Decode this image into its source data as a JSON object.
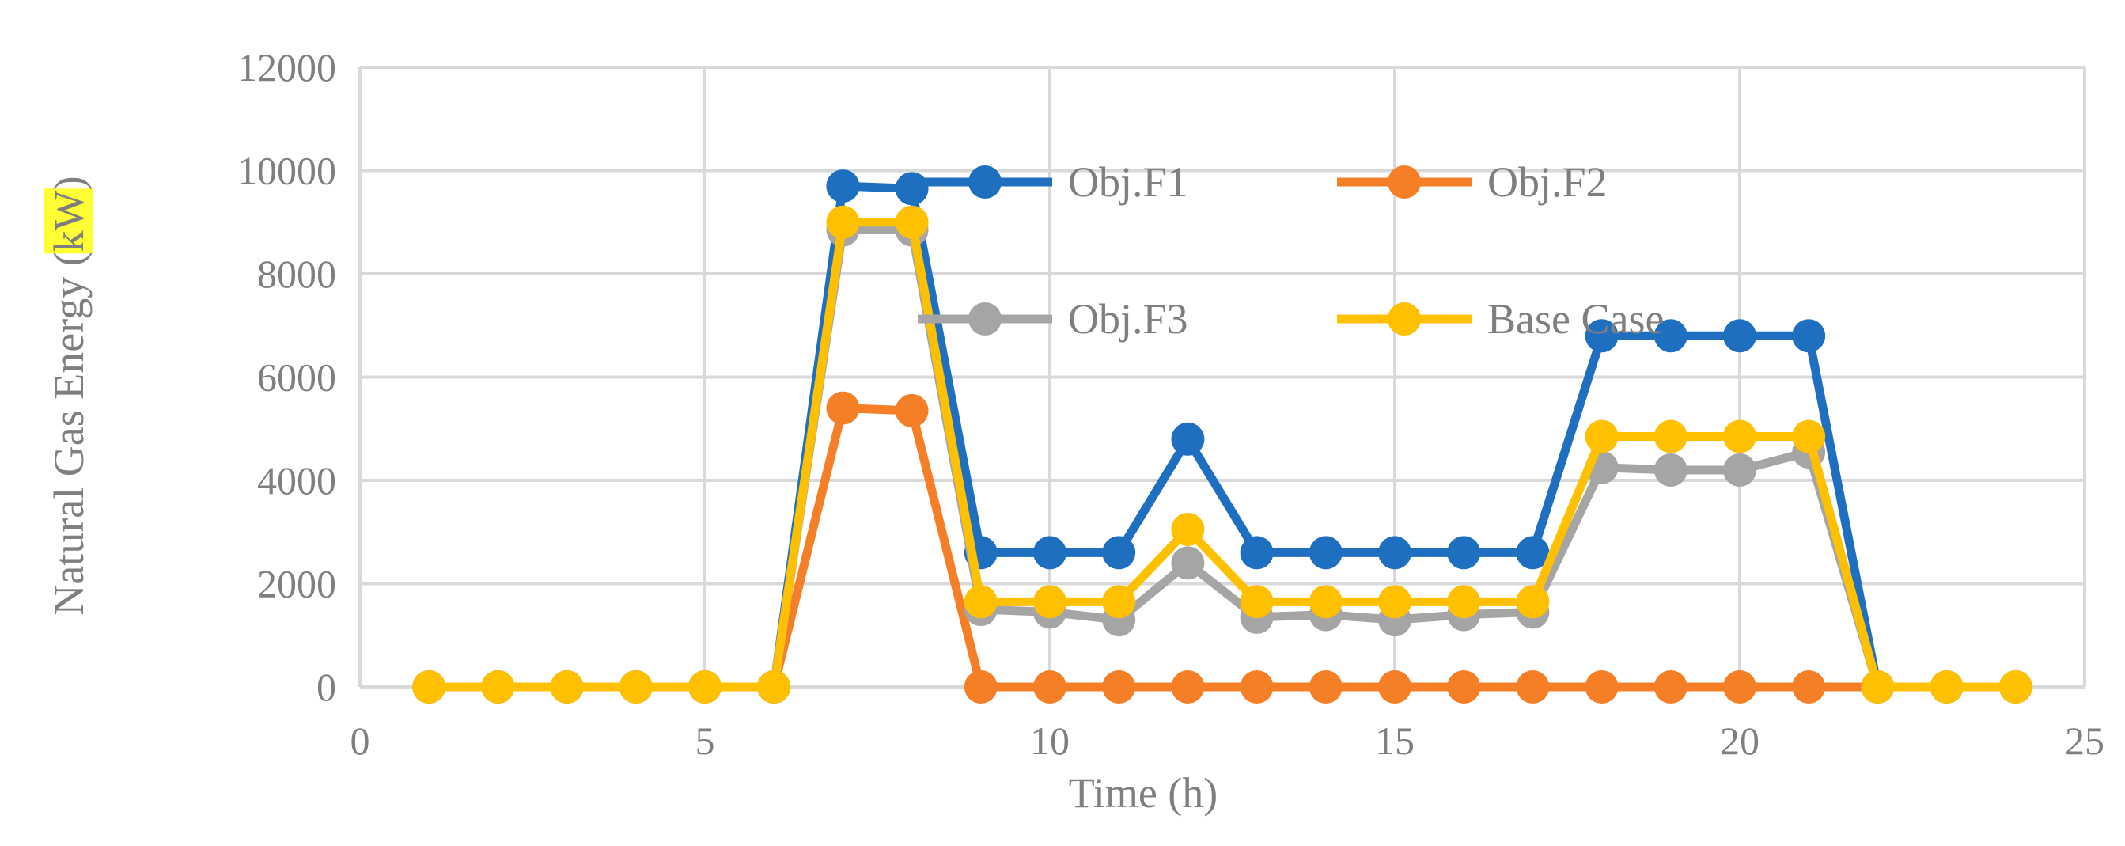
{
  "chart_data": {
    "type": "line",
    "title": "",
    "xlabel": "Time (h)",
    "ylabel_prefix": "Natural Gas Energy (",
    "ylabel_unit": "kW",
    "ylabel_suffix": ")",
    "xlim": [
      0,
      25
    ],
    "ylim": [
      0,
      12000
    ],
    "xticks": [
      0,
      5,
      10,
      15,
      20,
      25
    ],
    "yticks": [
      0,
      2000,
      4000,
      6000,
      8000,
      10000,
      12000
    ],
    "grid": true,
    "legend_position": "inside-top",
    "x": [
      1,
      2,
      3,
      4,
      5,
      6,
      7,
      8,
      9,
      10,
      11,
      12,
      13,
      14,
      15,
      16,
      17,
      18,
      19,
      20,
      21,
      22,
      23,
      24
    ],
    "series": [
      {
        "name": "Obj.F1",
        "color": "#1f6fc0",
        "values": [
          0,
          0,
          0,
          0,
          0,
          0,
          9700,
          9650,
          2600,
          2600,
          2600,
          4800,
          2600,
          2600,
          2600,
          2600,
          2600,
          6800,
          6800,
          6800,
          6800,
          0,
          0,
          0
        ]
      },
      {
        "name": "Obj.F2",
        "color": "#f57f26",
        "values": [
          0,
          0,
          0,
          0,
          0,
          0,
          5400,
          5350,
          0,
          0,
          0,
          0,
          0,
          0,
          0,
          0,
          0,
          0,
          0,
          0,
          0,
          0,
          0,
          0
        ]
      },
      {
        "name": "Obj.F3",
        "color": "#a5a5a5",
        "values": [
          0,
          0,
          0,
          0,
          0,
          0,
          8850,
          8850,
          1500,
          1450,
          1300,
          2400,
          1350,
          1400,
          1300,
          1400,
          1450,
          4250,
          4200,
          4200,
          4550,
          0,
          0,
          0
        ]
      },
      {
        "name": "Base Case",
        "color": "#ffc000",
        "values": [
          0,
          0,
          0,
          0,
          0,
          0,
          9000,
          9000,
          1650,
          1650,
          1650,
          3050,
          1650,
          1650,
          1650,
          1650,
          1650,
          4850,
          4850,
          4850,
          4850,
          0,
          0,
          0
        ]
      }
    ],
    "highlight_color": "#ffff33"
  }
}
